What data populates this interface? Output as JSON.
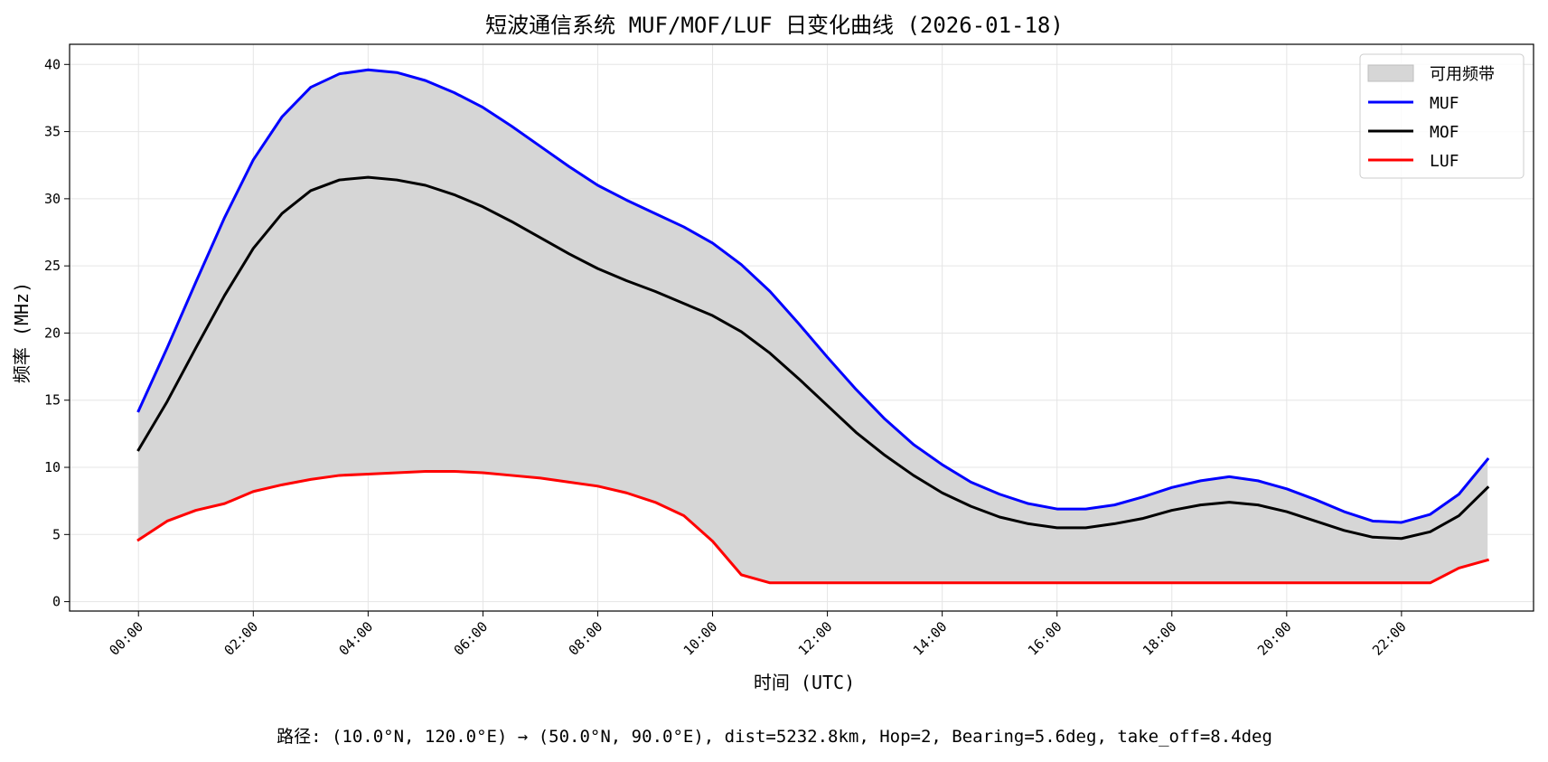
{
  "chart_data": {
    "type": "line",
    "title": "短波通信系统 MUF/MOF/LUF 日变化曲线 (2026-01-18)",
    "xlabel": "时间 (UTC)",
    "ylabel": "频率 (MHz)",
    "xlim": [
      -1.2,
      24.3
    ],
    "ylim": [
      -0.7,
      41.5
    ],
    "grid": true,
    "legend_position": "top-right",
    "x_ticks": [
      0,
      2,
      4,
      6,
      8,
      10,
      12,
      14,
      16,
      18,
      20,
      22
    ],
    "x_tick_labels": [
      "00:00",
      "02:00",
      "04:00",
      "06:00",
      "08:00",
      "10:00",
      "12:00",
      "14:00",
      "16:00",
      "18:00",
      "20:00",
      "22:00"
    ],
    "y_ticks": [
      0,
      5,
      10,
      15,
      20,
      25,
      30,
      35,
      40
    ],
    "y_tick_labels": [
      "0",
      "5",
      "10",
      "15",
      "20",
      "25",
      "30",
      "35",
      "40"
    ],
    "x": [
      0,
      0.5,
      1,
      1.5,
      2,
      2.5,
      3,
      3.5,
      4,
      4.5,
      5,
      5.5,
      6,
      6.5,
      7,
      7.5,
      8,
      8.5,
      9,
      9.5,
      10,
      10.5,
      11,
      11.5,
      12,
      12.5,
      13,
      13.5,
      14,
      14.5,
      15,
      15.5,
      16,
      16.5,
      17,
      17.5,
      18,
      18.5,
      19,
      19.5,
      20,
      20.5,
      21,
      21.5,
      22,
      22.5,
      23,
      23.5
    ],
    "fill": {
      "name": "可用频带",
      "between": [
        "LUF",
        "MUF"
      ],
      "color": "#d6d6d6"
    },
    "series": [
      {
        "name": "MUF",
        "color": "#0000ff",
        "values": [
          14.2,
          18.9,
          23.8,
          28.6,
          32.9,
          36.1,
          38.3,
          39.3,
          39.6,
          39.4,
          38.8,
          37.9,
          36.8,
          35.4,
          33.9,
          32.4,
          31.0,
          29.9,
          28.9,
          27.9,
          26.7,
          25.1,
          23.1,
          20.7,
          18.2,
          15.8,
          13.6,
          11.7,
          10.2,
          8.9,
          8.0,
          7.3,
          6.9,
          6.9,
          7.2,
          7.8,
          8.5,
          9.0,
          9.3,
          9.0,
          8.4,
          7.6,
          6.7,
          6.0,
          5.9,
          6.5,
          8.0,
          10.6
        ]
      },
      {
        "name": "MOF",
        "color": "#000000",
        "values": [
          11.3,
          14.9,
          18.9,
          22.8,
          26.3,
          28.9,
          30.6,
          31.4,
          31.6,
          31.4,
          31.0,
          30.3,
          29.4,
          28.3,
          27.1,
          25.9,
          24.8,
          23.9,
          23.1,
          22.2,
          21.3,
          20.1,
          18.5,
          16.6,
          14.6,
          12.6,
          10.9,
          9.4,
          8.1,
          7.1,
          6.3,
          5.8,
          5.5,
          5.5,
          5.8,
          6.2,
          6.8,
          7.2,
          7.4,
          7.2,
          6.7,
          6.0,
          5.3,
          4.8,
          4.7,
          5.2,
          6.4,
          8.5
        ]
      },
      {
        "name": "LUF",
        "color": "#ff0000",
        "values": [
          4.6,
          6.0,
          6.8,
          7.3,
          8.2,
          8.7,
          9.1,
          9.4,
          9.5,
          9.6,
          9.7,
          9.7,
          9.6,
          9.4,
          9.2,
          8.9,
          8.6,
          8.1,
          7.4,
          6.4,
          4.5,
          2.0,
          1.4,
          1.4,
          1.4,
          1.4,
          1.4,
          1.4,
          1.4,
          1.4,
          1.4,
          1.4,
          1.4,
          1.4,
          1.4,
          1.4,
          1.4,
          1.4,
          1.4,
          1.4,
          1.4,
          1.4,
          1.4,
          1.4,
          1.4,
          1.4,
          2.5,
          3.1
        ]
      }
    ],
    "caption": "路径: (10.0°N, 120.0°E) → (50.0°N, 90.0°E), dist=5232.8km, Hop=2, Bearing=5.6deg, take_off=8.4deg"
  }
}
